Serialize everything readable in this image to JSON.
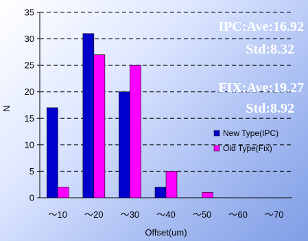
{
  "chart_data": {
    "type": "bar",
    "categories": [
      "～10",
      "～20",
      "～30",
      "～40",
      "～50",
      "～60",
      "～70"
    ],
    "series": [
      {
        "name": "New Type(IPC)",
        "values": [
          17,
          31,
          20,
          2,
          0,
          0,
          0
        ],
        "color": "#0000cc"
      },
      {
        "name": "Old Type(Fix)",
        "values": [
          2,
          27,
          25,
          5,
          1,
          0,
          0
        ],
        "color": "#ff00ff"
      }
    ],
    "xlabel": "Offset(um)",
    "ylabel": "N",
    "ylim": [
      0,
      35
    ],
    "yticks": [
      0,
      5,
      10,
      15,
      20,
      25,
      30,
      35
    ],
    "grid": true,
    "legend": "right",
    "annotations": [
      "IPC:Ave:16.92",
      "Std:8.32",
      "FIX:Ave:19.27",
      "Std:8.92"
    ]
  }
}
